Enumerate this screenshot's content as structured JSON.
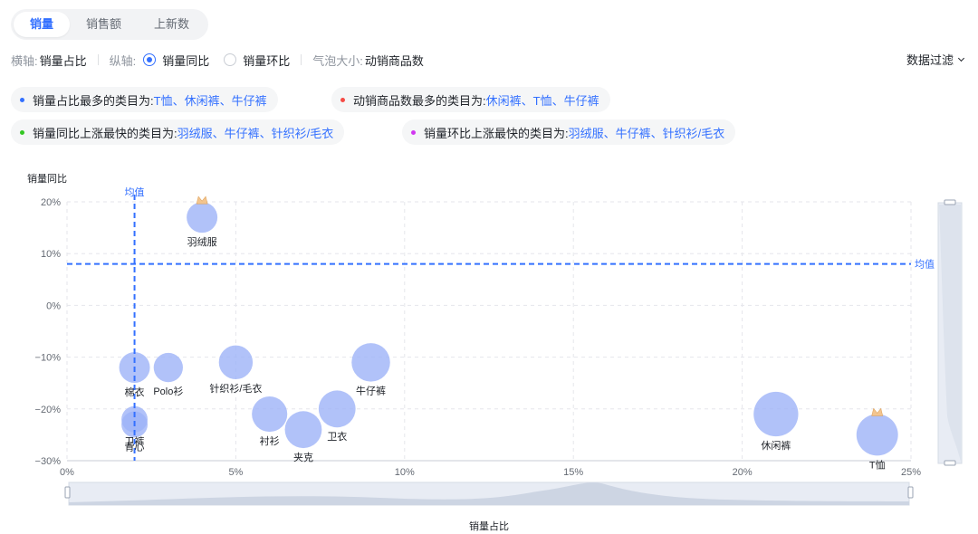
{
  "tabs": [
    {
      "label": "销量",
      "active": true
    },
    {
      "label": "销售额",
      "active": false
    },
    {
      "label": "上新数",
      "active": false
    }
  ],
  "controls": {
    "x_axis_label": "横轴:",
    "x_axis_value": "销量占比",
    "y_axis_label": "纵轴:",
    "y_options": [
      {
        "label": "销量同比",
        "checked": true
      },
      {
        "label": "销量环比",
        "checked": false
      }
    ],
    "bubble_label": "气泡大小:",
    "bubble_value": "动销商品数",
    "filter_label": "数据过滤"
  },
  "insights": [
    {
      "label": "销量占比最多的类目为:",
      "value": "T恤、休闲裤、牛仔裤",
      "color": "#3370ff"
    },
    {
      "label": "动销商品数最多的类目为:",
      "value": "休闲裤、T恤、牛仔裤",
      "color": "#f54a45"
    },
    {
      "label": "销量同比上涨最快的类目为:",
      "value": "羽绒服、牛仔裤、针织衫/毛衣",
      "color": "#34c724"
    },
    {
      "label": "销量环比上涨最快的类目为:",
      "value": "羽绒服、牛仔裤、针织衫/毛衣",
      "color": "#d136f0"
    }
  ],
  "chart_data": {
    "type": "scatter",
    "subtype": "bubble",
    "ylabel": "销量同比",
    "xlabel": "销量占比",
    "xlim": [
      0,
      25
    ],
    "ylim": [
      -30,
      20
    ],
    "x_ticks": [
      "0%",
      "5%",
      "10%",
      "15%",
      "20%",
      "25%"
    ],
    "y_ticks": [
      "20%",
      "10%",
      "0%",
      "−10%",
      "−20%",
      "−30%"
    ],
    "grid": true,
    "mean_label": "均值",
    "mean_x": 2,
    "mean_y": 8,
    "bubble_color": "#9db3f8",
    "mean_line_color": "#3370ff",
    "points": [
      {
        "name": "羽绒服",
        "x": 4,
        "y": 17,
        "size": 1.0,
        "crown": true
      },
      {
        "name": "棉衣",
        "x": 2,
        "y": -12,
        "size": 1.0
      },
      {
        "name": "Polo衫",
        "x": 3,
        "y": -12,
        "size": 0.95
      },
      {
        "name": "针织衫/毛衣",
        "x": 5,
        "y": -11,
        "size": 1.1
      },
      {
        "name": "牛仔裤",
        "x": 9,
        "y": -11,
        "size": 1.25
      },
      {
        "name": "卫衣",
        "x": 8,
        "y": -20,
        "size": 1.2
      },
      {
        "name": "衬衫",
        "x": 6,
        "y": -21,
        "size": 1.15
      },
      {
        "name": "夹克",
        "x": 7,
        "y": -24,
        "size": 1.2
      },
      {
        "name": "卫裤",
        "x": 2,
        "y": -22,
        "size": 0.85
      },
      {
        "name": "背心",
        "x": 2,
        "y": -23,
        "size": 0.85
      },
      {
        "name": "休闲裤",
        "x": 21,
        "y": -21,
        "size": 1.45
      },
      {
        "name": "T恤",
        "x": 24,
        "y": -25,
        "size": 1.35,
        "crown": true
      }
    ]
  }
}
